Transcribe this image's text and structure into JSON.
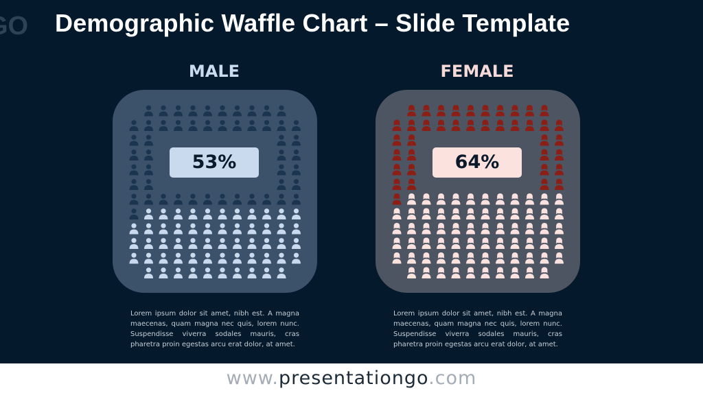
{
  "slide": {
    "title": "Demographic Waffle Chart – Slide Template",
    "background_color": "#04192b"
  },
  "chart_data": [
    {
      "type": "waffle",
      "title": "MALE",
      "value_percent": 53,
      "value_label": "53%",
      "grid_columns": 12,
      "grid_rows": 12,
      "grid_shape": "rounded square ring with hollow center",
      "filled_color": "#c9d9ee",
      "unfilled_color": "#1b3450",
      "icon": "male-person-icon",
      "description": "Lorem ipsum dolor sit amet, nibh est. A magna maecenas, quam magna nec quis, lorem nunc. Suspendisse viverra sodales mauris, cras pharetra proin egestas arcu erat dolor, at amet."
    },
    {
      "type": "waffle",
      "title": "FEMALE",
      "value_percent": 64,
      "value_label": "64%",
      "grid_columns": 12,
      "grid_rows": 12,
      "grid_shape": "rounded square ring with hollow center",
      "filled_color": "#fbe2df",
      "unfilled_color": "#8b1f16",
      "icon": "female-person-icon",
      "description": "Lorem ipsum dolor sit amet, nibh est. A magna maecenas, quam magna nec quis, lorem nunc. Suspendisse viverra sodales mauris, cras pharetra proin egestas arcu erat dolor, at amet."
    }
  ],
  "footer": {
    "www": "www.",
    "name": "presentationgo",
    "com": ".com"
  }
}
